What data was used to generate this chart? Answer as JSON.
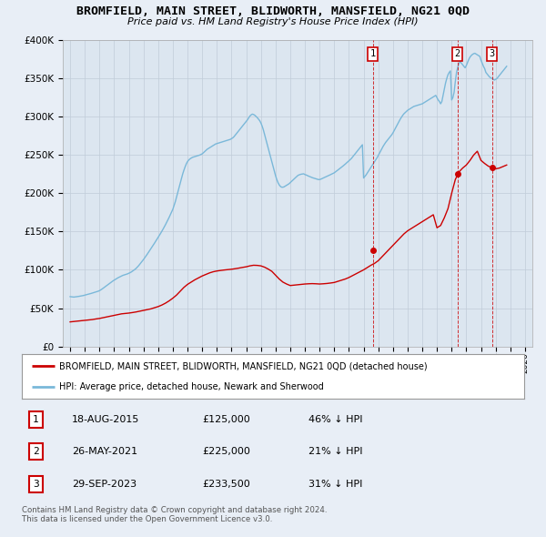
{
  "title": "BROMFIELD, MAIN STREET, BLIDWORTH, MANSFIELD, NG21 0QD",
  "subtitle": "Price paid vs. HM Land Registry's House Price Index (HPI)",
  "legend_line1": "BROMFIELD, MAIN STREET, BLIDWORTH, MANSFIELD, NG21 0QD (detached house)",
  "legend_line2": "HPI: Average price, detached house, Newark and Sherwood",
  "footer1": "Contains HM Land Registry data © Crown copyright and database right 2024.",
  "footer2": "This data is licensed under the Open Government Licence v3.0.",
  "transactions": [
    {
      "num": 1,
      "date": "18-AUG-2015",
      "price": "£125,000",
      "hpi": "46% ↓ HPI",
      "year": 2015.63
    },
    {
      "num": 2,
      "date": "26-MAY-2021",
      "price": "£225,000",
      "hpi": "21% ↓ HPI",
      "year": 2021.4
    },
    {
      "num": 3,
      "date": "29-SEP-2023",
      "price": "£233,500",
      "hpi": "31% ↓ HPI",
      "year": 2023.75
    }
  ],
  "transaction_values": [
    125000,
    225000,
    233500
  ],
  "ylim": [
    0,
    400000
  ],
  "yticks": [
    0,
    50000,
    100000,
    150000,
    200000,
    250000,
    300000,
    350000,
    400000
  ],
  "ytick_labels": [
    "£0",
    "£50K",
    "£100K",
    "£150K",
    "£200K",
    "£250K",
    "£300K",
    "£350K",
    "£400K"
  ],
  "hpi_color": "#7ab8d9",
  "sale_color": "#cc0000",
  "marker_color": "#cc0000",
  "bg_color": "#e8eef6",
  "plot_bg": "#dce6f0",
  "grid_color": "#c0ccd8",
  "hpi_data_years": [
    1995.0,
    1995.083,
    1995.167,
    1995.25,
    1995.333,
    1995.417,
    1995.5,
    1995.583,
    1995.667,
    1995.75,
    1995.833,
    1995.917,
    1996.0,
    1996.083,
    1996.167,
    1996.25,
    1996.333,
    1996.417,
    1996.5,
    1996.583,
    1996.667,
    1996.75,
    1996.833,
    1996.917,
    1997.0,
    1997.083,
    1997.167,
    1997.25,
    1997.333,
    1997.417,
    1997.5,
    1997.583,
    1997.667,
    1997.75,
    1997.833,
    1997.917,
    1998.0,
    1998.083,
    1998.167,
    1998.25,
    1998.333,
    1998.417,
    1998.5,
    1998.583,
    1998.667,
    1998.75,
    1998.833,
    1998.917,
    1999.0,
    1999.083,
    1999.167,
    1999.25,
    1999.333,
    1999.417,
    1999.5,
    1999.583,
    1999.667,
    1999.75,
    1999.833,
    1999.917,
    2000.0,
    2000.083,
    2000.167,
    2000.25,
    2000.333,
    2000.417,
    2000.5,
    2000.583,
    2000.667,
    2000.75,
    2000.833,
    2000.917,
    2001.0,
    2001.083,
    2001.167,
    2001.25,
    2001.333,
    2001.417,
    2001.5,
    2001.583,
    2001.667,
    2001.75,
    2001.833,
    2001.917,
    2002.0,
    2002.083,
    2002.167,
    2002.25,
    2002.333,
    2002.417,
    2002.5,
    2002.583,
    2002.667,
    2002.75,
    2002.833,
    2002.917,
    2003.0,
    2003.083,
    2003.167,
    2003.25,
    2003.333,
    2003.417,
    2003.5,
    2003.583,
    2003.667,
    2003.75,
    2003.833,
    2003.917,
    2004.0,
    2004.083,
    2004.167,
    2004.25,
    2004.333,
    2004.417,
    2004.5,
    2004.583,
    2004.667,
    2004.75,
    2004.833,
    2004.917,
    2005.0,
    2005.083,
    2005.167,
    2005.25,
    2005.333,
    2005.417,
    2005.5,
    2005.583,
    2005.667,
    2005.75,
    2005.833,
    2005.917,
    2006.0,
    2006.083,
    2006.167,
    2006.25,
    2006.333,
    2006.417,
    2006.5,
    2006.583,
    2006.667,
    2006.75,
    2006.833,
    2006.917,
    2007.0,
    2007.083,
    2007.167,
    2007.25,
    2007.333,
    2007.417,
    2007.5,
    2007.583,
    2007.667,
    2007.75,
    2007.833,
    2007.917,
    2008.0,
    2008.083,
    2008.167,
    2008.25,
    2008.333,
    2008.417,
    2008.5,
    2008.583,
    2008.667,
    2008.75,
    2008.833,
    2008.917,
    2009.0,
    2009.083,
    2009.167,
    2009.25,
    2009.333,
    2009.417,
    2009.5,
    2009.583,
    2009.667,
    2009.75,
    2009.833,
    2009.917,
    2010.0,
    2010.083,
    2010.167,
    2010.25,
    2010.333,
    2010.417,
    2010.5,
    2010.583,
    2010.667,
    2010.75,
    2010.833,
    2010.917,
    2011.0,
    2011.083,
    2011.167,
    2011.25,
    2011.333,
    2011.417,
    2011.5,
    2011.583,
    2011.667,
    2011.75,
    2011.833,
    2011.917,
    2012.0,
    2012.083,
    2012.167,
    2012.25,
    2012.333,
    2012.417,
    2012.5,
    2012.583,
    2012.667,
    2012.75,
    2012.833,
    2012.917,
    2013.0,
    2013.083,
    2013.167,
    2013.25,
    2013.333,
    2013.417,
    2013.5,
    2013.583,
    2013.667,
    2013.75,
    2013.833,
    2013.917,
    2014.0,
    2014.083,
    2014.167,
    2014.25,
    2014.333,
    2014.417,
    2014.5,
    2014.583,
    2014.667,
    2014.75,
    2014.833,
    2014.917,
    2015.0,
    2015.083,
    2015.167,
    2015.25,
    2015.333,
    2015.417,
    2015.5,
    2015.583,
    2015.667,
    2015.75,
    2015.833,
    2015.917,
    2016.0,
    2016.083,
    2016.167,
    2016.25,
    2016.333,
    2016.417,
    2016.5,
    2016.583,
    2016.667,
    2016.75,
    2016.833,
    2016.917,
    2017.0,
    2017.083,
    2017.167,
    2017.25,
    2017.333,
    2017.417,
    2017.5,
    2017.583,
    2017.667,
    2017.75,
    2017.833,
    2017.917,
    2018.0,
    2018.083,
    2018.167,
    2018.25,
    2018.333,
    2018.417,
    2018.5,
    2018.583,
    2018.667,
    2018.75,
    2018.833,
    2018.917,
    2019.0,
    2019.083,
    2019.167,
    2019.25,
    2019.333,
    2019.417,
    2019.5,
    2019.583,
    2019.667,
    2019.75,
    2019.833,
    2019.917,
    2020.0,
    2020.083,
    2020.167,
    2020.25,
    2020.333,
    2020.417,
    2020.5,
    2020.583,
    2020.667,
    2020.75,
    2020.833,
    2020.917,
    2021.0,
    2021.083,
    2021.167,
    2021.25,
    2021.333,
    2021.417,
    2021.5,
    2021.583,
    2021.667,
    2021.75,
    2021.833,
    2021.917,
    2022.0,
    2022.083,
    2022.167,
    2022.25,
    2022.333,
    2022.417,
    2022.5,
    2022.583,
    2022.667,
    2022.75,
    2022.833,
    2022.917,
    2023.0,
    2023.083,
    2023.167,
    2023.25,
    2023.333,
    2023.417,
    2023.5,
    2023.583,
    2023.667,
    2023.75,
    2023.833,
    2023.917,
    2024.0,
    2024.083,
    2024.167,
    2024.25,
    2024.333,
    2024.417,
    2024.5,
    2024.583,
    2024.667,
    2024.75
  ],
  "hpi_data_values": [
    65000,
    64800,
    64600,
    64400,
    64600,
    64800,
    65000,
    65300,
    65600,
    65900,
    66200,
    66500,
    67000,
    67400,
    67800,
    68200,
    68700,
    69100,
    69600,
    70100,
    70600,
    71100,
    71600,
    72100,
    72800,
    73800,
    74800,
    76000,
    77200,
    78400,
    79600,
    80800,
    82000,
    83200,
    84400,
    85500,
    86500,
    87500,
    88500,
    89500,
    90300,
    91100,
    91900,
    92700,
    93200,
    93700,
    94200,
    94800,
    95500,
    96300,
    97200,
    98300,
    99400,
    100600,
    102000,
    103600,
    105400,
    107400,
    109400,
    111400,
    113500,
    115700,
    118000,
    120300,
    122700,
    125000,
    127400,
    129900,
    132400,
    134900,
    137400,
    139900,
    142500,
    145000,
    147700,
    150400,
    153200,
    156100,
    159100,
    162200,
    165400,
    168700,
    172100,
    175600,
    179200,
    184000,
    189000,
    195000,
    201000,
    207000,
    213000,
    219000,
    225000,
    230000,
    234500,
    238500,
    241500,
    243500,
    245000,
    246000,
    247000,
    247500,
    248000,
    248500,
    249000,
    249500,
    250000,
    250800,
    251600,
    253000,
    254500,
    256000,
    257500,
    258500,
    259500,
    260500,
    261500,
    262500,
    263500,
    264500,
    265000,
    265500,
    266000,
    266500,
    267000,
    267500,
    268000,
    268500,
    269000,
    269500,
    270000,
    270500,
    271500,
    272500,
    274000,
    276000,
    278000,
    280000,
    282000,
    284000,
    286000,
    288000,
    290000,
    292000,
    294000,
    296000,
    298500,
    301000,
    302500,
    303500,
    303000,
    302000,
    300500,
    299000,
    297000,
    295000,
    292000,
    288000,
    283000,
    277000,
    271000,
    265000,
    259000,
    253000,
    247000,
    241000,
    235000,
    229000,
    223000,
    218000,
    214000,
    211000,
    209000,
    208000,
    208000,
    208500,
    209500,
    210500,
    211500,
    212500,
    214000,
    215500,
    217000,
    218500,
    220000,
    221500,
    223000,
    224000,
    224500,
    225000,
    225200,
    225500,
    224500,
    224000,
    223200,
    222500,
    221800,
    221000,
    220500,
    220000,
    219500,
    219000,
    218500,
    218000,
    218000,
    218500,
    219200,
    220000,
    220800,
    221500,
    222200,
    223000,
    223700,
    224500,
    225200,
    226000,
    226800,
    228000,
    229200,
    230500,
    231800,
    233000,
    234200,
    235500,
    236800,
    238200,
    239600,
    241000,
    242500,
    244000,
    245500,
    247500,
    249500,
    251500,
    253500,
    255500,
    257500,
    259500,
    261500,
    263500,
    220000,
    222000,
    224000,
    226500,
    229000,
    231500,
    234000,
    236500,
    239000,
    241500,
    244000,
    246500,
    249500,
    252500,
    255500,
    258500,
    261500,
    264000,
    266500,
    268500,
    270500,
    272500,
    274500,
    276500,
    279000,
    282000,
    285000,
    288000,
    291000,
    294000,
    297000,
    299500,
    302000,
    304000,
    305500,
    307000,
    308500,
    309500,
    310500,
    311500,
    312500,
    313500,
    314000,
    314500,
    315000,
    315500,
    316000,
    316500,
    317000,
    318000,
    319000,
    320000,
    321000,
    322000,
    323000,
    324000,
    325000,
    326000,
    327000,
    328000,
    325000,
    322000,
    320000,
    317000,
    320000,
    328000,
    336000,
    344000,
    350000,
    355000,
    358000,
    360000,
    322000,
    325000,
    332000,
    346000,
    358000,
    365000,
    370000,
    372000,
    370000,
    368000,
    366000,
    364000,
    367000,
    371000,
    375000,
    378000,
    380000,
    381500,
    382500,
    383000,
    382000,
    381000,
    380000,
    379000,
    374000,
    370000,
    366000,
    363000,
    358000,
    356000,
    354000,
    352000,
    351000,
    350000,
    349000,
    348000,
    349000,
    350000,
    352000,
    354000,
    356000,
    358000,
    360000,
    362000,
    364000,
    366000
  ],
  "sale_data_years": [
    1995.0,
    1995.25,
    1995.5,
    1995.75,
    1996.0,
    1996.25,
    1996.5,
    1996.75,
    1997.0,
    1997.25,
    1997.5,
    1997.75,
    1998.0,
    1998.25,
    1998.5,
    1998.75,
    1999.0,
    1999.25,
    1999.5,
    1999.75,
    2000.0,
    2000.25,
    2000.5,
    2000.75,
    2001.0,
    2001.25,
    2001.5,
    2001.75,
    2002.0,
    2002.25,
    2002.5,
    2002.75,
    2003.0,
    2003.25,
    2003.5,
    2003.75,
    2004.0,
    2004.25,
    2004.5,
    2004.75,
    2005.0,
    2005.25,
    2005.5,
    2005.75,
    2006.0,
    2006.25,
    2006.5,
    2006.75,
    2007.0,
    2007.25,
    2007.5,
    2007.75,
    2008.0,
    2008.25,
    2008.5,
    2008.75,
    2009.0,
    2009.25,
    2009.5,
    2009.75,
    2010.0,
    2010.25,
    2010.5,
    2010.75,
    2011.0,
    2011.25,
    2011.5,
    2011.75,
    2012.0,
    2012.25,
    2012.5,
    2012.75,
    2013.0,
    2013.25,
    2013.5,
    2013.75,
    2014.0,
    2014.25,
    2014.5,
    2014.75,
    2015.0,
    2015.25,
    2015.5,
    2015.75,
    2016.0,
    2016.25,
    2016.5,
    2016.75,
    2017.0,
    2017.25,
    2017.5,
    2017.75,
    2018.0,
    2018.25,
    2018.5,
    2018.75,
    2019.0,
    2019.25,
    2019.5,
    2019.75,
    2020.0,
    2020.25,
    2020.5,
    2020.75,
    2021.0,
    2021.25,
    2021.5,
    2021.75,
    2022.0,
    2022.25,
    2022.5,
    2022.75,
    2023.0,
    2023.25,
    2023.5,
    2023.75,
    2024.0,
    2024.25,
    2024.5,
    2024.75
  ],
  "sale_data_values": [
    32000,
    32500,
    33000,
    33500,
    34000,
    34500,
    35000,
    35800,
    36500,
    37500,
    38500,
    39500,
    40500,
    41500,
    42500,
    43000,
    43500,
    44200,
    45000,
    46000,
    47000,
    48000,
    49000,
    50500,
    52000,
    54000,
    56500,
    59500,
    63000,
    67000,
    72000,
    77000,
    81000,
    84000,
    87000,
    89500,
    92000,
    94000,
    96000,
    97500,
    98500,
    99200,
    99800,
    100300,
    100800,
    101500,
    102300,
    103200,
    104000,
    105200,
    106000,
    105800,
    105200,
    103500,
    101000,
    98000,
    93000,
    88000,
    84000,
    81500,
    79500,
    80000,
    80500,
    81000,
    81500,
    81800,
    82000,
    81800,
    81500,
    81800,
    82200,
    82800,
    83500,
    85000,
    86500,
    88000,
    90000,
    92500,
    95000,
    97500,
    100000,
    103000,
    106000,
    108500,
    112000,
    117000,
    122000,
    127000,
    132000,
    137000,
    142000,
    147000,
    151000,
    154000,
    157000,
    160000,
    163000,
    166000,
    169000,
    172000,
    155000,
    158000,
    168000,
    180000,
    200000,
    218000,
    228000,
    233000,
    237000,
    243000,
    250000,
    255000,
    243000,
    239000,
    235500,
    233500,
    232000,
    233000,
    235000,
    237000
  ]
}
